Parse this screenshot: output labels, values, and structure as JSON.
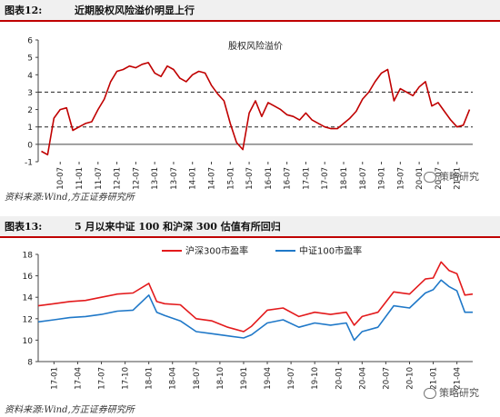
{
  "figure1": {
    "number": "图表12:",
    "title": "近期股权风险溢价明显上行",
    "source": "资料来源:Wind,方正证券研究所",
    "watermark": "策略研究",
    "chart_data": {
      "type": "line",
      "title": "股权风险溢价",
      "ylim": [
        -1,
        6
      ],
      "yticks": [
        -1,
        0,
        1,
        2,
        3,
        4,
        5,
        6
      ],
      "xticks": [
        "10-07",
        "11-01",
        "11-07",
        "12-01",
        "12-07",
        "13-01",
        "13-07",
        "14-01",
        "14-07",
        "15-01",
        "15-07",
        "16-01",
        "16-07",
        "17-01",
        "17-07",
        "18-01",
        "18-07",
        "19-01",
        "19-07",
        "20-01",
        "20-07",
        "21-01"
      ],
      "reference_lines": [
        3,
        1
      ],
      "color": "#c00000",
      "series": [
        {
          "x": [
            "10-01",
            "10-03",
            "10-05",
            "10-07",
            "10-09",
            "10-11",
            "11-01",
            "11-03",
            "11-05",
            "11-07",
            "11-09",
            "11-11",
            "12-01",
            "12-03",
            "12-05",
            "12-07",
            "12-09",
            "12-11",
            "13-01",
            "13-03",
            "13-05",
            "13-07",
            "13-09",
            "13-11",
            "14-01",
            "14-03",
            "14-05",
            "14-07",
            "14-09",
            "14-11",
            "15-01",
            "15-03",
            "15-05",
            "15-07",
            "15-09",
            "15-11",
            "16-01",
            "16-03",
            "16-05",
            "16-07",
            "16-09",
            "16-11",
            "17-01",
            "17-03",
            "17-05",
            "17-07",
            "17-09",
            "17-11",
            "18-01",
            "18-03",
            "18-05",
            "18-07",
            "18-09",
            "18-11",
            "19-01",
            "19-03",
            "19-05",
            "19-07",
            "19-09",
            "19-11",
            "20-01",
            "20-03",
            "20-05",
            "20-07",
            "20-09",
            "20-11",
            "21-01",
            "21-03",
            "21-05"
          ],
          "values": [
            -0.4,
            -0.6,
            1.5,
            2.0,
            2.1,
            0.8,
            1.0,
            1.2,
            1.3,
            2.0,
            2.6,
            3.6,
            4.2,
            4.3,
            4.5,
            4.4,
            4.6,
            4.7,
            4.1,
            3.9,
            4.5,
            4.3,
            3.8,
            3.6,
            4.0,
            4.2,
            4.1,
            3.4,
            2.9,
            2.5,
            1.2,
            0.1,
            -0.3,
            1.8,
            2.5,
            1.6,
            2.4,
            2.2,
            2.0,
            1.7,
            1.6,
            1.4,
            1.8,
            1.4,
            1.2,
            1.0,
            0.9,
            0.9,
            1.2,
            1.5,
            1.9,
            2.6,
            3.0,
            3.6,
            4.1,
            4.3,
            2.5,
            3.2,
            3.0,
            2.8,
            3.3,
            3.6,
            2.2,
            2.4,
            1.9,
            1.4,
            1.0,
            1.1,
            2.0
          ]
        }
      ]
    }
  },
  "figure2": {
    "number": "图表13:",
    "title": "5 月以来中证 100 和沪深 300 估值有所回归",
    "source": "资料来源:Wind,方正证券研究所",
    "watermark": "策略研究",
    "chart_data": {
      "type": "line",
      "ylim": [
        8,
        18
      ],
      "yticks": [
        8,
        10,
        12,
        14,
        16,
        18
      ],
      "xticks": [
        "17-01",
        "17-04",
        "17-07",
        "17-10",
        "18-01",
        "18-04",
        "18-07",
        "18-10",
        "19-01",
        "19-04",
        "19-07",
        "19-10",
        "20-01",
        "20-04",
        "20-07",
        "20-10",
        "21-01",
        "21-04"
      ],
      "legend_position": "top",
      "series": [
        {
          "name": "沪深300市盈率",
          "color": "#e31a1c",
          "x": [
            "16-11",
            "17-01",
            "17-03",
            "17-05",
            "17-07",
            "17-09",
            "17-11",
            "18-01",
            "18-02",
            "18-03",
            "18-05",
            "18-07",
            "18-09",
            "18-11",
            "19-01",
            "19-02",
            "19-04",
            "19-06",
            "19-08",
            "19-10",
            "19-12",
            "20-02",
            "20-03",
            "20-04",
            "20-06",
            "20-08",
            "20-10",
            "20-12",
            "21-01",
            "21-02",
            "21-03",
            "21-04",
            "21-05",
            "21-06"
          ],
          "values": [
            13.2,
            13.4,
            13.6,
            13.7,
            14.0,
            14.3,
            14.4,
            15.3,
            13.6,
            13.4,
            13.3,
            12.0,
            11.8,
            11.2,
            10.8,
            11.3,
            12.8,
            13.0,
            12.2,
            12.6,
            12.4,
            12.6,
            11.4,
            12.2,
            12.6,
            14.5,
            14.3,
            15.7,
            15.8,
            17.3,
            16.5,
            16.2,
            14.2,
            14.3
          ]
        },
        {
          "name": "中证100市盈率",
          "color": "#1f78c8",
          "x": [
            "16-11",
            "17-01",
            "17-03",
            "17-05",
            "17-07",
            "17-09",
            "17-11",
            "18-01",
            "18-02",
            "18-03",
            "18-05",
            "18-07",
            "18-09",
            "18-11",
            "19-01",
            "19-02",
            "19-04",
            "19-06",
            "19-08",
            "19-10",
            "19-12",
            "20-02",
            "20-03",
            "20-04",
            "20-06",
            "20-08",
            "20-10",
            "20-12",
            "21-01",
            "21-02",
            "21-03",
            "21-04",
            "21-05",
            "21-06"
          ],
          "values": [
            11.7,
            11.9,
            12.1,
            12.2,
            12.4,
            12.7,
            12.8,
            14.2,
            12.6,
            12.3,
            11.8,
            10.8,
            10.6,
            10.4,
            10.2,
            10.5,
            11.6,
            11.9,
            11.2,
            11.6,
            11.4,
            11.6,
            10.0,
            10.8,
            11.2,
            13.2,
            13.0,
            14.4,
            14.7,
            15.6,
            15.0,
            14.6,
            12.6,
            12.6
          ]
        }
      ]
    }
  }
}
